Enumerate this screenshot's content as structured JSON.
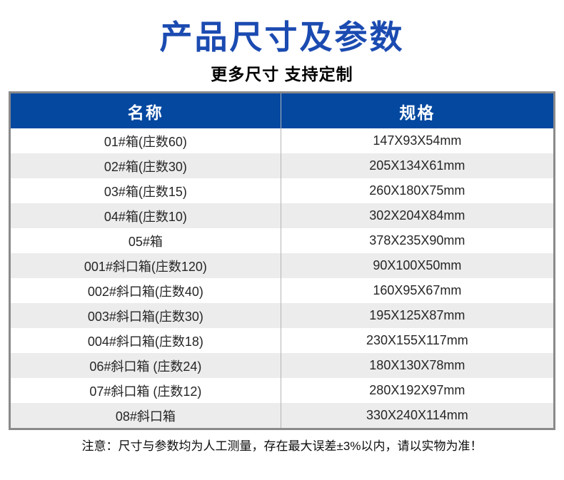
{
  "header": {
    "title": "产品尺寸及参数",
    "subtitle": "更多尺寸 支持定制"
  },
  "table": {
    "columns": [
      {
        "label": "名称"
      },
      {
        "label": "规格"
      }
    ],
    "rows": [
      {
        "name": "01#箱(庄数60)",
        "spec": "147X93X54mm"
      },
      {
        "name": "02#箱(庄数30)",
        "spec": "205X134X61mm"
      },
      {
        "name": "03#箱(庄数15)",
        "spec": "260X180X75mm"
      },
      {
        "name": "04#箱(庄数10)",
        "spec": "302X204X84mm"
      },
      {
        "name": "05#箱",
        "spec": "378X235X90mm"
      },
      {
        "name": "001#斜口箱(庄数120)",
        "spec": "90X100X50mm"
      },
      {
        "name": "002#斜口箱(庄数40)",
        "spec": "160X95X67mm"
      },
      {
        "name": "003#斜口箱(庄数30)",
        "spec": "195X125X87mm"
      },
      {
        "name": "004#斜口箱(庄数18)",
        "spec": "230X155X117mm"
      },
      {
        "name": "06#斜口箱 (庄数24)",
        "spec": "180X130X78mm"
      },
      {
        "name": "07#斜口箱 (庄数12)",
        "spec": "280X192X97mm"
      },
      {
        "name": "08#斜口箱",
        "spec": "330X240X114mm"
      }
    ]
  },
  "note": "注意：尺寸与参数均为人工测量，存在最大误差±3%以内，请以实物为准！",
  "colors": {
    "title_blue": "#1b4bb1",
    "header_blue": "#0448a0",
    "header_text": "#ffffff",
    "row_alt": "#ececec",
    "border_gray": "#8a8a8a",
    "divider_gray": "#b4b4b4"
  }
}
